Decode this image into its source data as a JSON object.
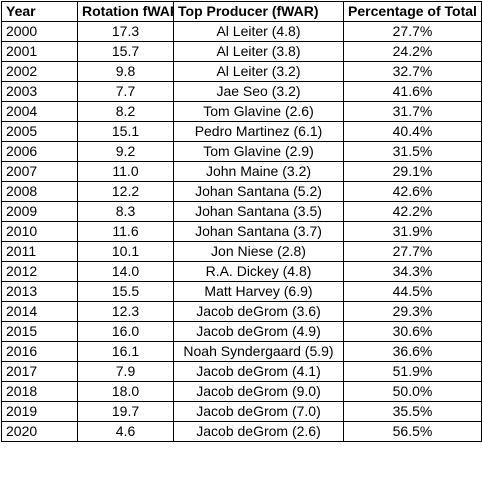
{
  "headers": [
    "Year",
    "Rotation fWAR",
    "Top Producer (fWAR)",
    "Percentage of Total"
  ],
  "rows": [
    [
      "2000",
      "17.3",
      "Al Leiter (4.8)",
      "27.7%"
    ],
    [
      "2001",
      "15.7",
      "Al Leiter (3.8)",
      "24.2%"
    ],
    [
      "2002",
      "9.8",
      "Al Leiter (3.2)",
      "32.7%"
    ],
    [
      "2003",
      "7.7",
      "Jae Seo (3.2)",
      "41.6%"
    ],
    [
      "2004",
      "8.2",
      "Tom Glavine (2.6)",
      "31.7%"
    ],
    [
      "2005",
      "15.1",
      "Pedro Martinez (6.1)",
      "40.4%"
    ],
    [
      "2006",
      "9.2",
      "Tom Glavine (2.9)",
      "31.5%"
    ],
    [
      "2007",
      "11.0",
      "John Maine (3.2)",
      "29.1%"
    ],
    [
      "2008",
      "12.2",
      "Johan Santana (5.2)",
      "42.6%"
    ],
    [
      "2009",
      "8.3",
      "Johan Santana (3.5)",
      "42.2%"
    ],
    [
      "2010",
      "11.6",
      "Johan Santana (3.7)",
      "31.9%"
    ],
    [
      "2011",
      "10.1",
      "Jon Niese (2.8)",
      "27.7%"
    ],
    [
      "2012",
      "14.0",
      "R.A. Dickey (4.8)",
      "34.3%"
    ],
    [
      "2013",
      "15.5",
      "Matt Harvey (6.9)",
      "44.5%"
    ],
    [
      "2014",
      "12.3",
      "Jacob deGrom (3.6)",
      "29.3%"
    ],
    [
      "2015",
      "16.0",
      "Jacob deGrom (4.9)",
      "30.6%"
    ],
    [
      "2016",
      "16.1",
      "Noah Syndergaard (5.9)",
      "36.6%"
    ],
    [
      "2017",
      "7.9",
      "Jacob deGrom (4.1)",
      "51.9%"
    ],
    [
      "2018",
      "18.0",
      "Jacob deGrom (9.0)",
      "50.0%"
    ],
    [
      "2019",
      "19.7",
      "Jacob deGrom (7.0)",
      "35.5%"
    ],
    [
      "2020",
      "4.6",
      "Jacob deGrom (2.6)",
      "56.5%"
    ]
  ]
}
